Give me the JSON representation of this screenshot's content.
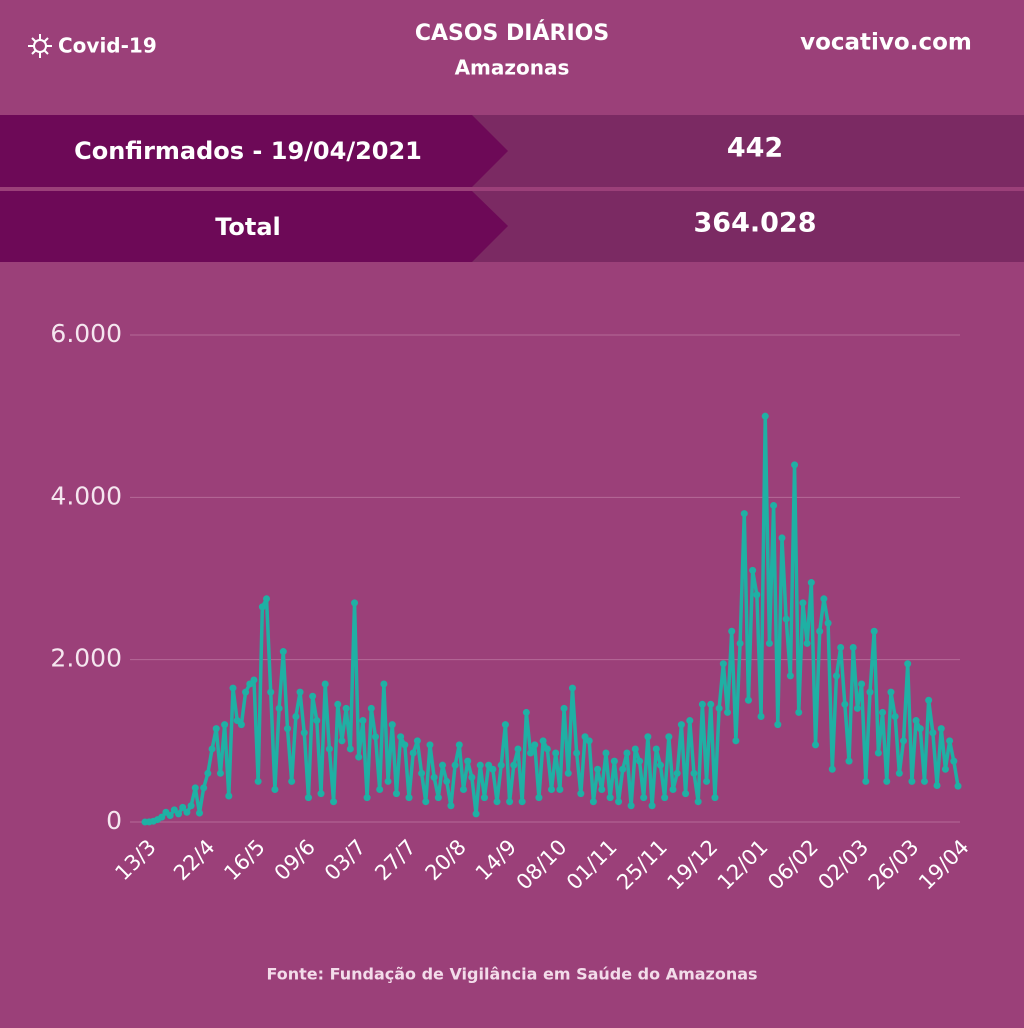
{
  "header": {
    "brand": "Covid-19",
    "title": "CASOS DIÁRIOS",
    "subtitle": "Amazonas",
    "site": "vocativo.com"
  },
  "summary": {
    "rows": [
      [
        "Confirmados - 19/04/2021",
        "442"
      ],
      [
        "Total",
        "364.028"
      ]
    ]
  },
  "chart_data": {
    "type": "line",
    "categories": [
      "13/3",
      null,
      null,
      null,
      null,
      null,
      null,
      null,
      null,
      null,
      null,
      null,
      null,
      null,
      "22/4",
      null,
      null,
      null,
      null,
      null,
      null,
      null,
      null,
      null,
      null,
      null,
      "16/5",
      null,
      null,
      null,
      null,
      null,
      null,
      null,
      null,
      null,
      null,
      null,
      "09/6",
      null,
      null,
      null,
      null,
      null,
      null,
      null,
      null,
      null,
      null,
      null,
      "03/7",
      null,
      null,
      null,
      null,
      null,
      null,
      null,
      null,
      null,
      null,
      null,
      "27/7",
      null,
      null,
      null,
      null,
      null,
      null,
      null,
      null,
      null,
      null,
      null,
      "20/8",
      null,
      null,
      null,
      null,
      null,
      null,
      null,
      null,
      null,
      null,
      null,
      "14/9",
      null,
      null,
      null,
      null,
      null,
      null,
      null,
      null,
      null,
      null,
      null,
      "08/10",
      null,
      null,
      null,
      null,
      null,
      null,
      null,
      null,
      null,
      null,
      null,
      "01/11",
      null,
      null,
      null,
      null,
      null,
      null,
      null,
      null,
      null,
      null,
      null,
      "25/11",
      null,
      null,
      null,
      null,
      null,
      null,
      null,
      null,
      null,
      null,
      null,
      "19/12",
      null,
      null,
      null,
      null,
      null,
      null,
      null,
      null,
      null,
      null,
      null,
      "12/01",
      null,
      null,
      null,
      null,
      null,
      null,
      null,
      null,
      null,
      null,
      null,
      "06/02",
      null,
      null,
      null,
      null,
      null,
      null,
      null,
      null,
      null,
      null,
      null,
      "02/03",
      null,
      null,
      null,
      null,
      null,
      null,
      null,
      null,
      null,
      null,
      null,
      "26/03",
      null,
      null,
      null,
      null,
      null,
      null,
      null,
      null,
      null,
      null,
      null,
      "19/04"
    ],
    "values": [
      0,
      2,
      10,
      30,
      60,
      120,
      80,
      150,
      100,
      180,
      120,
      200,
      420,
      110,
      420,
      600,
      900,
      1150,
      600,
      1200,
      320,
      1650,
      1250,
      1200,
      1600,
      1700,
      1750,
      500,
      2650,
      2750,
      1600,
      400,
      1400,
      2100,
      1150,
      500,
      1300,
      1600,
      1100,
      300,
      1550,
      1250,
      350,
      1700,
      900,
      250,
      1450,
      1000,
      1400,
      900,
      2700,
      800,
      1250,
      300,
      1400,
      1050,
      400,
      1700,
      500,
      1200,
      350,
      1050,
      950,
      300,
      850,
      1000,
      600,
      250,
      950,
      550,
      300,
      700,
      500,
      200,
      700,
      950,
      400,
      750,
      550,
      100,
      700,
      300,
      700,
      650,
      250,
      700,
      1200,
      250,
      700,
      900,
      250,
      1350,
      850,
      950,
      300,
      1000,
      900,
      400,
      850,
      400,
      1400,
      600,
      1650,
      850,
      350,
      1050,
      1000,
      250,
      650,
      400,
      850,
      300,
      750,
      250,
      650,
      850,
      200,
      900,
      750,
      300,
      1050,
      200,
      900,
      700,
      300,
      1050,
      400,
      600,
      1200,
      350,
      1250,
      600,
      250,
      1450,
      500,
      1450,
      300,
      1400,
      1950,
      1350,
      2350,
      1000,
      2200,
      3800,
      1500,
      3100,
      2800,
      1300,
      5000,
      2200,
      3900,
      1200,
      3500,
      2500,
      1800,
      4400,
      1350,
      2700,
      2200,
      2950,
      950,
      2350,
      2750,
      2450,
      650,
      1800,
      2150,
      1450,
      750,
      2150,
      1400,
      1700,
      500,
      1600,
      2350,
      850,
      1350,
      500,
      1600,
      1300,
      600,
      1000,
      1950,
      500,
      1250,
      1150,
      500,
      1500,
      1100,
      450,
      1150,
      650,
      1000,
      750,
      442
    ],
    "color": "#1fb0a4",
    "ylim": [
      0,
      6000
    ],
    "yticks": [
      0,
      {
        "value": 2000,
        "label": "2.000"
      },
      {
        "value": 4000,
        "label": "4.000"
      },
      {
        "value": 6000,
        "label": "6.000"
      }
    ],
    "grid": true
  },
  "footer": {
    "source": "Fonte: Fundação de Vigilância em Saúde do Amazonas"
  }
}
